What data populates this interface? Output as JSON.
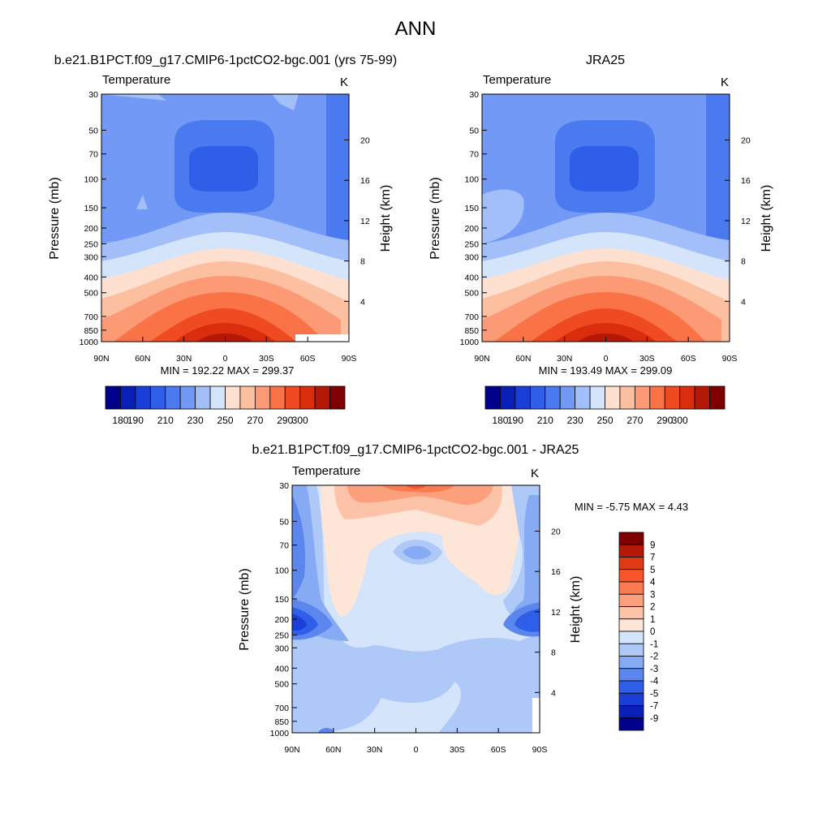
{
  "figure": {
    "title": "ANN"
  },
  "panels": [
    {
      "title": "b.e21.B1PCT.f09_g17.CMIP6-1pctCO2-bgc.001 (yrs 75-99)",
      "left_label": "Temperature",
      "right_label": "K",
      "ylabel": "Pressure (mb)",
      "y2label": "Height (km)",
      "stats_text": "MIN = 192.22  MAX = 299.37"
    },
    {
      "title": "JRA25",
      "left_label": "Temperature",
      "right_label": "K",
      "ylabel": "Pressure (mb)",
      "y2label": "Height (km)",
      "stats_text": "MIN = 193.49  MAX = 299.09"
    },
    {
      "title": "b.e21.B1PCT.f09_g17.CMIP6-1pctCO2-bgc.001 - JRA25",
      "left_label": "Temperature",
      "right_label": "K",
      "ylabel": "Pressure (mb)",
      "y2label": "Height (km)",
      "stats_text": "MIN =  -5.75  MAX =   4.43"
    }
  ],
  "chart_data": [
    {
      "type": "heatmap",
      "title": "b.e21.B1PCT.f09_g17.CMIP6-1pctCO2-bgc.001 (yrs 75-99)",
      "variable": "Temperature",
      "units": "K",
      "xlabel": "",
      "ylabel": "Pressure (mb)",
      "y2label": "Height (km)",
      "x_ticks": [
        "90N",
        "60N",
        "30N",
        "0",
        "30S",
        "60S",
        "90S"
      ],
      "y_ticks": [
        30,
        50,
        70,
        100,
        150,
        200,
        250,
        300,
        400,
        500,
        700,
        850,
        1000
      ],
      "y2_ticks": [
        4,
        8,
        12,
        16,
        20
      ],
      "ylim": [
        1000,
        30
      ],
      "y_scale": "log",
      "min": 192.22,
      "max": 299.37,
      "colorbar": {
        "orientation": "horizontal",
        "levels": [
          180,
          190,
          200,
          210,
          220,
          230,
          240,
          250,
          260,
          270,
          280,
          290,
          300
        ],
        "tick_labels": [
          "180",
          "190",
          "210",
          "230",
          "250",
          "270",
          "290",
          "300"
        ],
        "colors": [
          "#00008b",
          "#0a1fb8",
          "#1a3fd9",
          "#2f5ee8",
          "#4b7af0",
          "#7299f5",
          "#a3bff9",
          "#d4e5fb",
          "#fde0cf",
          "#fcbfa0",
          "#fb9a74",
          "#f97347",
          "#ef4a22",
          "#d92d0e",
          "#b51806",
          "#7f0000"
        ]
      }
    },
    {
      "type": "heatmap",
      "title": "JRA25",
      "variable": "Temperature",
      "units": "K",
      "xlabel": "",
      "ylabel": "Pressure (mb)",
      "y2label": "Height (km)",
      "x_ticks": [
        "90N",
        "60N",
        "30N",
        "0",
        "30S",
        "60S",
        "90S"
      ],
      "y_ticks": [
        30,
        50,
        70,
        100,
        150,
        200,
        250,
        300,
        400,
        500,
        700,
        850,
        1000
      ],
      "y2_ticks": [
        4,
        8,
        12,
        16,
        20
      ],
      "ylim": [
        1000,
        30
      ],
      "y_scale": "log",
      "min": 193.49,
      "max": 299.09,
      "colorbar": {
        "orientation": "horizontal",
        "levels": [
          180,
          190,
          200,
          210,
          220,
          230,
          240,
          250,
          260,
          270,
          280,
          290,
          300
        ],
        "tick_labels": [
          "180",
          "190",
          "210",
          "230",
          "250",
          "270",
          "290",
          "300"
        ],
        "colors": [
          "#00008b",
          "#0a1fb8",
          "#1a3fd9",
          "#2f5ee8",
          "#4b7af0",
          "#7299f5",
          "#a3bff9",
          "#d4e5fb",
          "#fde0cf",
          "#fcbfa0",
          "#fb9a74",
          "#f97347",
          "#ef4a22",
          "#d92d0e",
          "#b51806",
          "#7f0000"
        ]
      }
    },
    {
      "type": "heatmap",
      "title": "b.e21.B1PCT.f09_g17.CMIP6-1pctCO2-bgc.001 - JRA25",
      "variable": "Temperature",
      "units": "K",
      "xlabel": "",
      "ylabel": "Pressure (mb)",
      "y2label": "Height (km)",
      "x_ticks": [
        "90N",
        "60N",
        "30N",
        "0",
        "30S",
        "60S",
        "90S"
      ],
      "y_ticks": [
        30,
        50,
        70,
        100,
        150,
        200,
        250,
        300,
        400,
        500,
        700,
        850,
        1000
      ],
      "y2_ticks": [
        4,
        8,
        12,
        16,
        20
      ],
      "ylim": [
        1000,
        30
      ],
      "y_scale": "log",
      "min": -5.75,
      "max": 4.43,
      "colorbar": {
        "orientation": "vertical",
        "levels": [
          -9,
          -7,
          -5,
          -4,
          -3,
          -2,
          -1,
          0,
          1,
          2,
          3,
          4,
          5,
          7,
          9
        ],
        "tick_labels": [
          "9",
          "7",
          "5",
          "4",
          "3",
          "2",
          "1",
          "0",
          "-1",
          "-2",
          "-3",
          "-4",
          "-5",
          "-7",
          "-9"
        ],
        "colors": [
          "#7f0000",
          "#b51806",
          "#e03a12",
          "#f9552a",
          "#fb7a50",
          "#fc9f7c",
          "#fdc3a8",
          "#fde6d8",
          "#d4e5fb",
          "#aec9f8",
          "#86aaf4",
          "#5b86ee",
          "#2f5ee8",
          "#1a3fd9",
          "#0a1fb8",
          "#00008b"
        ]
      }
    }
  ]
}
